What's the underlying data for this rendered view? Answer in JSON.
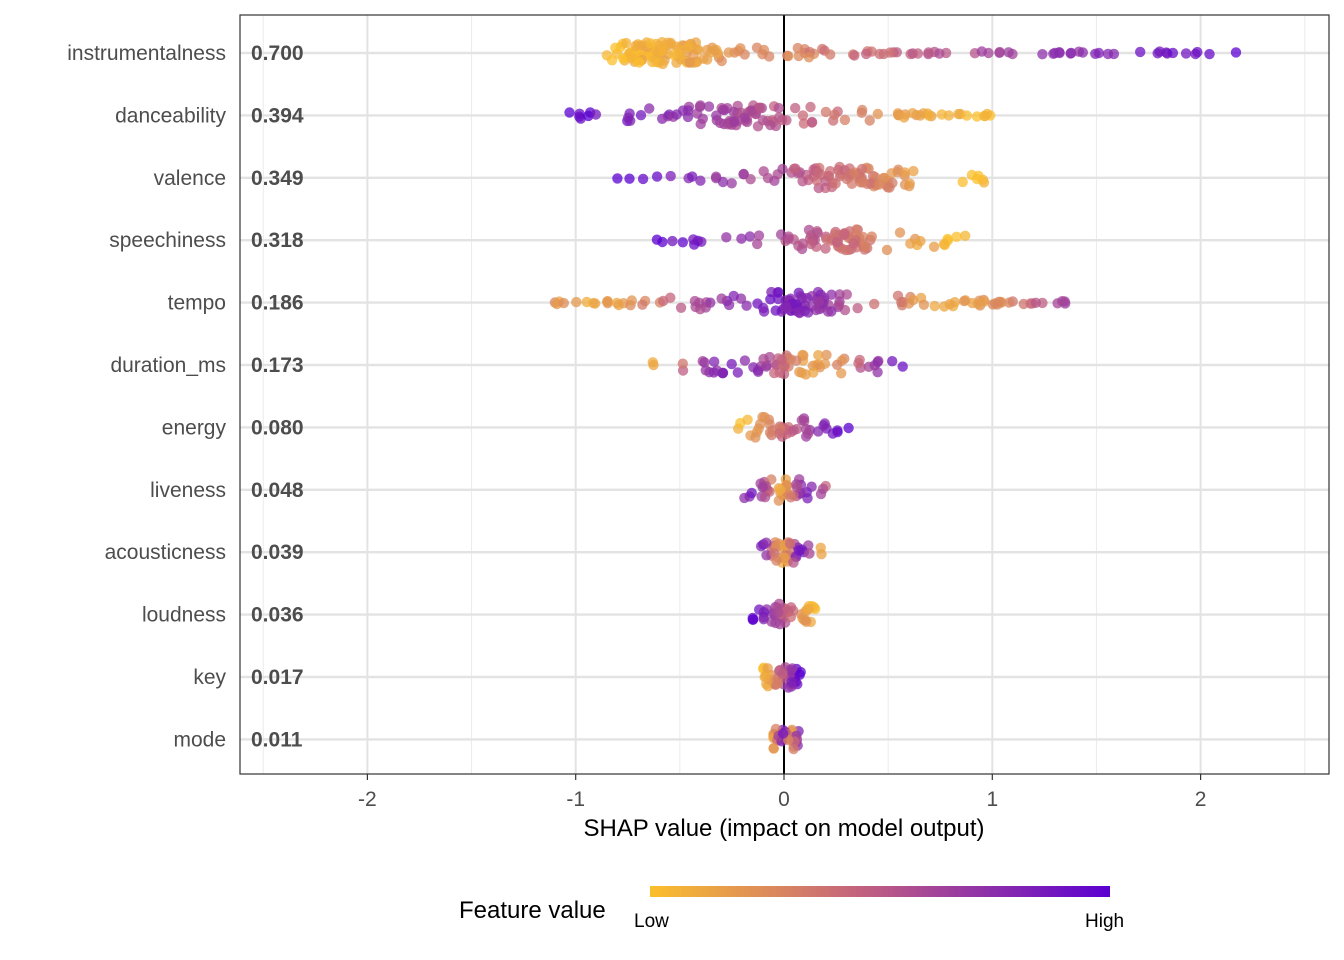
{
  "chart_data": {
    "type": "scatter",
    "subtype": "shap-summary-beeswarm",
    "xlabel": "SHAP value (impact on model output)",
    "xlim": [
      -2.5,
      2.6
    ],
    "xticks": [
      -2,
      -1,
      0,
      1,
      2
    ],
    "grid": true,
    "legend": {
      "title": "Feature value",
      "low_label": "Low",
      "high_label": "High",
      "placement": "bottom",
      "low_color": "#fbbf2c",
      "mid_color": "#c4637e",
      "high_color": "#5a00d2"
    },
    "features": [
      {
        "name": "instrumentalness",
        "mean_abs_shap": "0.700",
        "min": -0.85,
        "max": 2.17,
        "peak": -0.55,
        "correlation": "positive"
      },
      {
        "name": "danceability",
        "mean_abs_shap": "0.394",
        "min": -1.03,
        "max": 0.99,
        "peak": -0.2,
        "correlation": "negative"
      },
      {
        "name": "valence",
        "mean_abs_shap": "0.349",
        "min": -0.8,
        "max": 0.96,
        "peak": 0.3,
        "correlation": "negative"
      },
      {
        "name": "speechiness",
        "mean_abs_shap": "0.318",
        "min": -0.61,
        "max": 0.87,
        "peak": 0.25,
        "correlation": "negative"
      },
      {
        "name": "tempo",
        "mean_abs_shap": "0.186",
        "min": -1.1,
        "max": 1.35,
        "peak": 0.1,
        "correlation": "mixed"
      },
      {
        "name": "duration_ms",
        "mean_abs_shap": "0.173",
        "min": -0.63,
        "max": 0.57,
        "peak": 0.0,
        "correlation": "mixed"
      },
      {
        "name": "energy",
        "mean_abs_shap": "0.080",
        "min": -0.22,
        "max": 0.31,
        "peak": -0.05,
        "correlation": "positive"
      },
      {
        "name": "liveness",
        "mean_abs_shap": "0.048",
        "min": -0.19,
        "max": 0.2,
        "peak": 0.0,
        "correlation": "mixed"
      },
      {
        "name": "acousticness",
        "mean_abs_shap": "0.039",
        "min": -0.11,
        "max": 0.18,
        "peak": 0.0,
        "correlation": "mixed"
      },
      {
        "name": "loudness",
        "mean_abs_shap": "0.036",
        "min": -0.15,
        "max": 0.15,
        "peak": 0.0,
        "correlation": "negative"
      },
      {
        "name": "key",
        "mean_abs_shap": "0.017",
        "min": -0.1,
        "max": 0.08,
        "peak": 0.0,
        "correlation": "positive"
      },
      {
        "name": "mode",
        "mean_abs_shap": "0.011",
        "min": -0.05,
        "max": 0.07,
        "peak": 0.0,
        "correlation": "mixed"
      }
    ]
  }
}
